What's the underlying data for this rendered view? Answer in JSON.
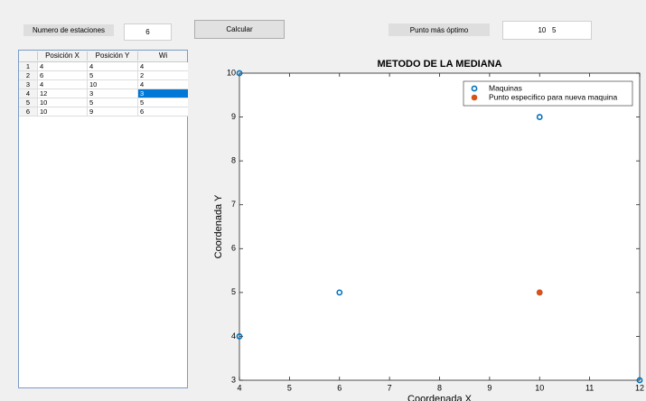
{
  "controls": {
    "stations_label": "Numero de estaciones",
    "stations_value": "6",
    "calc_button": "Calcular",
    "optimal_label": "Punto más óptimo",
    "optimal_value": "10   5"
  },
  "table": {
    "columns": [
      "Posición X",
      "Posición Y",
      "Wi"
    ],
    "row_labels": [
      "1",
      "2",
      "3",
      "4",
      "5",
      "6"
    ],
    "rows": [
      [
        4,
        4,
        4
      ],
      [
        6,
        5,
        2
      ],
      [
        4,
        10,
        4
      ],
      [
        12,
        3,
        3
      ],
      [
        10,
        5,
        5
      ],
      [
        10,
        9,
        6
      ]
    ]
  },
  "chart": {
    "type": "scatter",
    "title": "METODO DE LA MEDIANA",
    "x_label": "Coordenada X",
    "y_label": "Coordenada Y",
    "xlim": [
      4,
      12
    ],
    "xticks": [
      4,
      5,
      6,
      7,
      8,
      9,
      10,
      11,
      12
    ],
    "ylim": [
      3,
      10
    ],
    "yticks": [
      3,
      4,
      5,
      6,
      7,
      8,
      9,
      10
    ],
    "legend": "upper right",
    "series": [
      {
        "name": "Maquinas",
        "color": "#0072bd",
        "marker": "open",
        "x": [
          4,
          6,
          4,
          12,
          10,
          10
        ],
        "values": [
          4,
          5,
          10,
          3,
          5,
          9
        ]
      },
      {
        "name": "Punto especifico para nueva maquina",
        "color": "#d95319",
        "marker": "filled",
        "x": [
          10
        ],
        "values": [
          5
        ]
      }
    ]
  }
}
